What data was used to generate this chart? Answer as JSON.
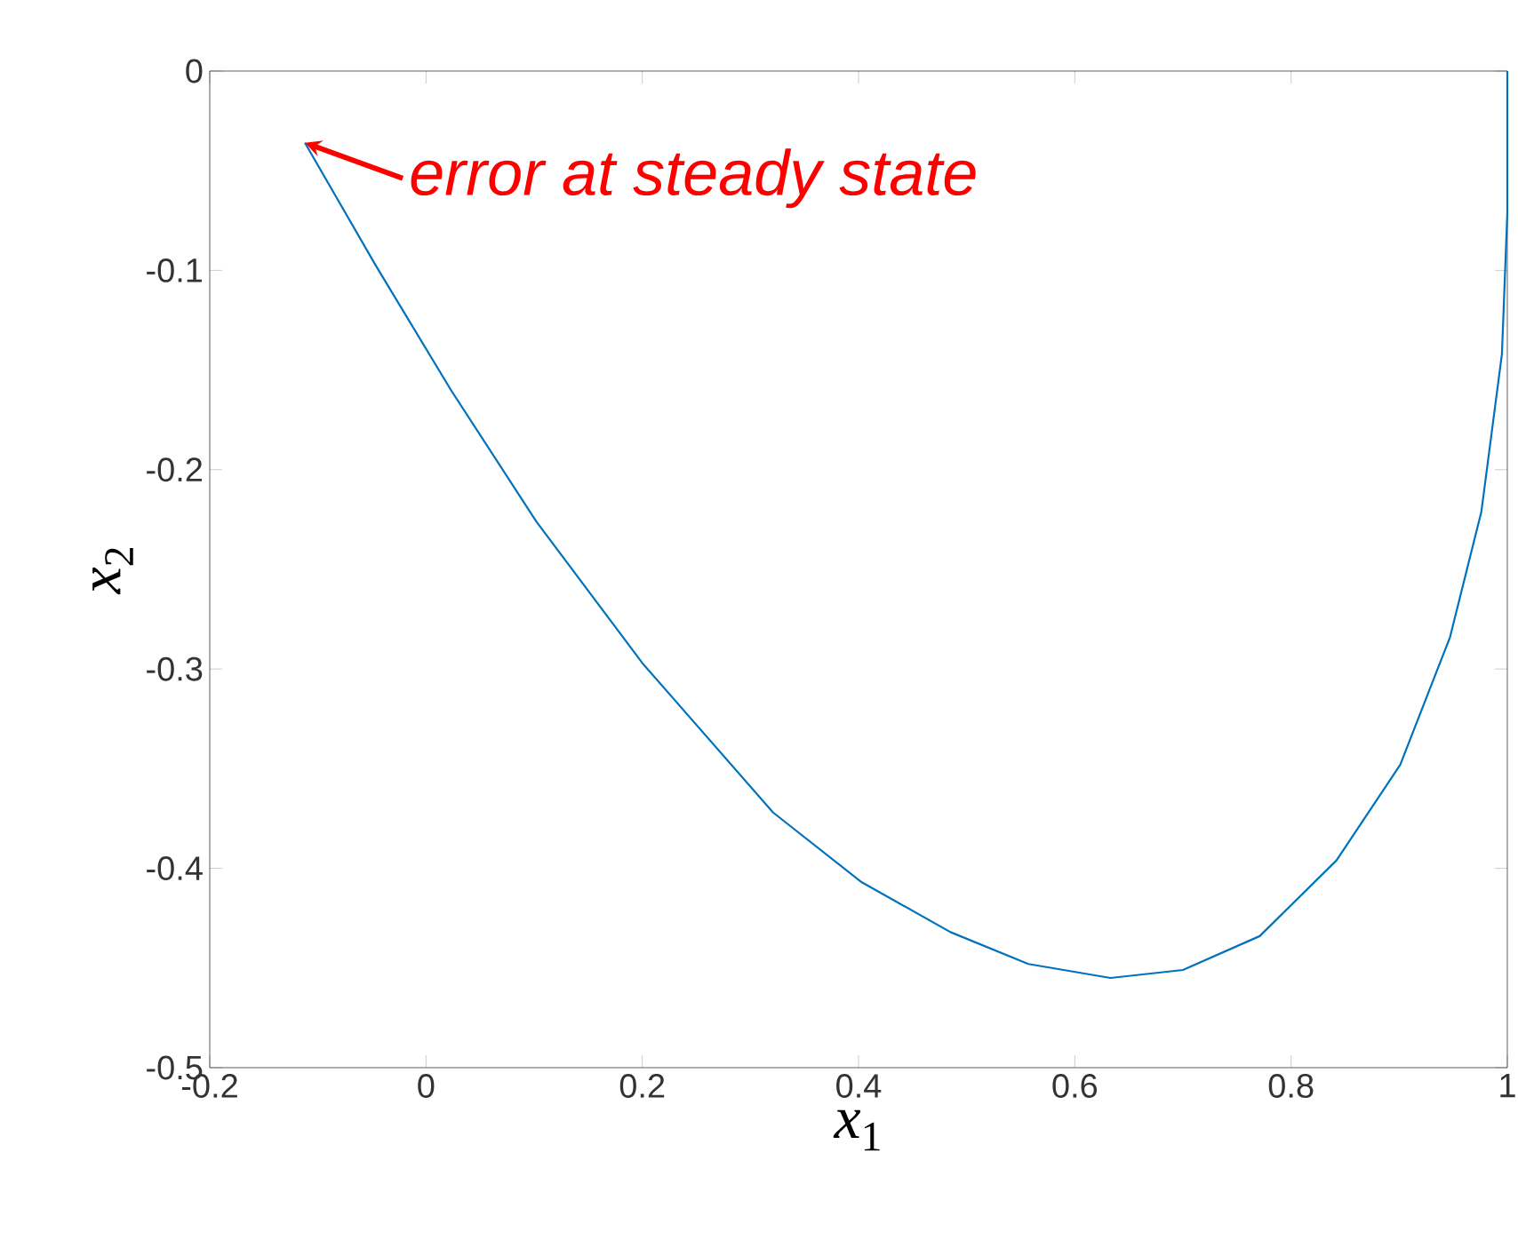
{
  "chart_data": {
    "type": "line",
    "xlabel": "*x*$_{1}$",
    "ylabel": "*x*$_{2}$",
    "xlim": [
      -0.2,
      1
    ],
    "ylim": [
      -0.5,
      0
    ],
    "xticks": [
      -0.2,
      0,
      0.2,
      0.4,
      0.6,
      0.8,
      1
    ],
    "yticks": [
      -0.5,
      -0.4,
      -0.3,
      -0.2,
      -0.1,
      0
    ],
    "grid": false,
    "marker": "none",
    "line_style": "solid",
    "series": [
      {
        "color": "#0072bd",
        "x": [
          -0.112,
          -0.046,
          0.023,
          0.102,
          0.2,
          0.321,
          0.403,
          0.485,
          0.557,
          0.633,
          0.7,
          0.771,
          0.842,
          0.901,
          0.947,
          0.976,
          0.995,
          1.0,
          1.0
        ],
        "values": [
          -0.036,
          -0.098,
          -0.16,
          -0.226,
          -0.297,
          -0.372,
          -0.407,
          -0.432,
          -0.448,
          -0.455,
          -0.451,
          -0.434,
          -0.396,
          -0.348,
          -0.284,
          -0.221,
          -0.142,
          -0.071,
          0
        ]
      }
    ],
    "annotations": [
      {
        "text": "error at steady state",
        "x": -0.112,
        "y": -0.036
      }
    ]
  }
}
